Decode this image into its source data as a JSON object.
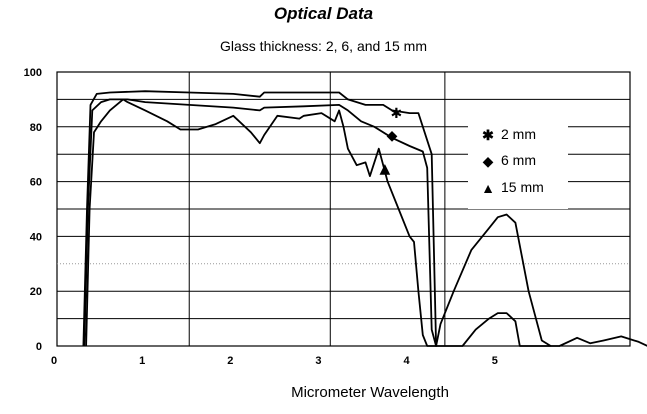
{
  "chart_data": {
    "type": "line",
    "title": "Optical Data",
    "subtitle": "Glass thickness: 2, 6, and 15 mm",
    "xlabel": "Micrometer Wavelength",
    "ylabel": "",
    "xlim": [
      0,
      6.5
    ],
    "ylim": [
      0,
      100
    ],
    "x_ticks": [
      "0",
      "1",
      "2",
      "3",
      "4",
      "5"
    ],
    "y_ticks": [
      "0",
      "20",
      "40",
      "60",
      "80",
      "100"
    ],
    "grid": true,
    "legend_position": "right",
    "series": [
      {
        "name": "2 mm",
        "marker": "asterisk",
        "marker_at": [
          3.85,
          85
        ],
        "points": [
          [
            0.3,
            0
          ],
          [
            0.34,
            50
          ],
          [
            0.38,
            88
          ],
          [
            0.45,
            92
          ],
          [
            0.6,
            92.5
          ],
          [
            1,
            93
          ],
          [
            1.5,
            92.5
          ],
          [
            2,
            92
          ],
          [
            2.3,
            91
          ],
          [
            2.35,
            92.5
          ],
          [
            2.8,
            92.5
          ],
          [
            3.2,
            92.5
          ],
          [
            3.3,
            90
          ],
          [
            3.5,
            88
          ],
          [
            3.7,
            88
          ],
          [
            3.8,
            86
          ],
          [
            4,
            85
          ],
          [
            4.1,
            85
          ],
          [
            4.25,
            70
          ],
          [
            4.3,
            0
          ]
        ]
      },
      {
        "name": "6 mm",
        "marker": "diamond",
        "marker_at": [
          3.8,
          77
        ],
        "points": [
          [
            0.31,
            0
          ],
          [
            0.35,
            50
          ],
          [
            0.4,
            86
          ],
          [
            0.5,
            89
          ],
          [
            0.6,
            90
          ],
          [
            0.8,
            90
          ],
          [
            1,
            89
          ],
          [
            1.5,
            88
          ],
          [
            2,
            87
          ],
          [
            2.3,
            86
          ],
          [
            2.35,
            87
          ],
          [
            2.8,
            87.5
          ],
          [
            3.2,
            88
          ],
          [
            3.3,
            86
          ],
          [
            3.45,
            82
          ],
          [
            3.6,
            80
          ],
          [
            3.8,
            76
          ],
          [
            4,
            73
          ],
          [
            4.15,
            71
          ],
          [
            4.2,
            65
          ],
          [
            4.25,
            6
          ],
          [
            4.3,
            0
          ],
          [
            4.35,
            8
          ],
          [
            4.5,
            20
          ],
          [
            4.7,
            35
          ],
          [
            4.9,
            43
          ],
          [
            5.0,
            47
          ],
          [
            5.1,
            48
          ],
          [
            5.2,
            45
          ],
          [
            5.35,
            20
          ],
          [
            5.5,
            2
          ],
          [
            5.6,
            0
          ]
        ]
      },
      {
        "name": "15 mm",
        "marker": "triangle",
        "marker_at": [
          3.72,
          65
        ],
        "points": [
          [
            0.33,
            0
          ],
          [
            0.37,
            50
          ],
          [
            0.42,
            78
          ],
          [
            0.5,
            82
          ],
          [
            0.6,
            86
          ],
          [
            0.75,
            90
          ],
          [
            0.8,
            89
          ],
          [
            1,
            86
          ],
          [
            1.25,
            82
          ],
          [
            1.4,
            79
          ],
          [
            1.6,
            79
          ],
          [
            1.8,
            81
          ],
          [
            2,
            84
          ],
          [
            2.2,
            78
          ],
          [
            2.3,
            74
          ],
          [
            2.35,
            77
          ],
          [
            2.5,
            84
          ],
          [
            2.75,
            83
          ],
          [
            2.8,
            84
          ],
          [
            3,
            85
          ],
          [
            3.15,
            82
          ],
          [
            3.2,
            86
          ],
          [
            3.25,
            80
          ],
          [
            3.3,
            72
          ],
          [
            3.4,
            66
          ],
          [
            3.5,
            67
          ],
          [
            3.55,
            62
          ],
          [
            3.65,
            72
          ],
          [
            3.75,
            60
          ],
          [
            3.85,
            52
          ],
          [
            4,
            40
          ],
          [
            4.05,
            38
          ],
          [
            4.1,
            20
          ],
          [
            4.15,
            4
          ],
          [
            4.2,
            0
          ],
          [
            4.6,
            0
          ],
          [
            4.75,
            6
          ],
          [
            4.9,
            10
          ],
          [
            5.0,
            12
          ],
          [
            5.1,
            12
          ],
          [
            5.2,
            9
          ],
          [
            5.25,
            0
          ],
          [
            5.7,
            0
          ],
          [
            5.9,
            3
          ],
          [
            6.05,
            1
          ],
          [
            6.2,
            2
          ],
          [
            6.4,
            3.5
          ],
          [
            6.6,
            1.5
          ],
          [
            6.7,
            0
          ]
        ]
      }
    ],
    "colors": {
      "series": "#000000",
      "grid": "#000000",
      "minor_grid": "#999999",
      "background": "#ffffff"
    }
  }
}
